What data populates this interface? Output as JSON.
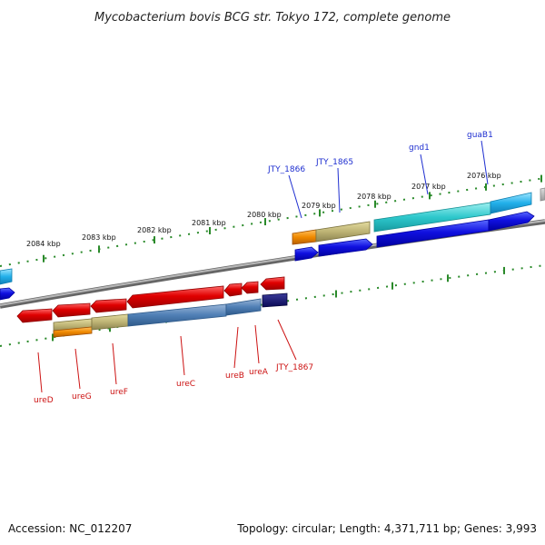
{
  "title": "Mycobacterium bovis BCG str. Tokyo 172, complete genome",
  "footer": {
    "accession": "Accession: NC_012207",
    "summary": "Topology: circular; Length: 4,371,711 bp; Genes: 3,993"
  },
  "kbp_labels": [
    "2084 kbp",
    "2083 kbp",
    "2082 kbp",
    "2081 kbp",
    "2080 kbp",
    "2079 kbp",
    "2078 kbp",
    "2077 kbp",
    "2076 kbp"
  ],
  "genes_top": [
    {
      "name": "JTY_1866",
      "color": "#1f2fd0"
    },
    {
      "name": "JTY_1865",
      "color": "#1f2fd0"
    },
    {
      "name": "gnd1",
      "color": "#1f2fd0"
    },
    {
      "name": "guaB1",
      "color": "#1f2fd0"
    }
  ],
  "genes_bottom": [
    {
      "name": "ureD",
      "color": "#cc1111"
    },
    {
      "name": "ureG",
      "color": "#cc1111"
    },
    {
      "name": "ureF",
      "color": "#cc1111"
    },
    {
      "name": "ureC",
      "color": "#cc1111"
    },
    {
      "name": "ureB",
      "color": "#cc1111"
    },
    {
      "name": "ureA",
      "color": "#cc1111"
    },
    {
      "name": "JTY_1867",
      "color": "#cc1111"
    }
  ],
  "colors": {
    "forward_gene": "#1010e0",
    "reverse_gene": "#e01010",
    "backbone": "#8a8a8a",
    "tick": "#2a8a2a"
  }
}
